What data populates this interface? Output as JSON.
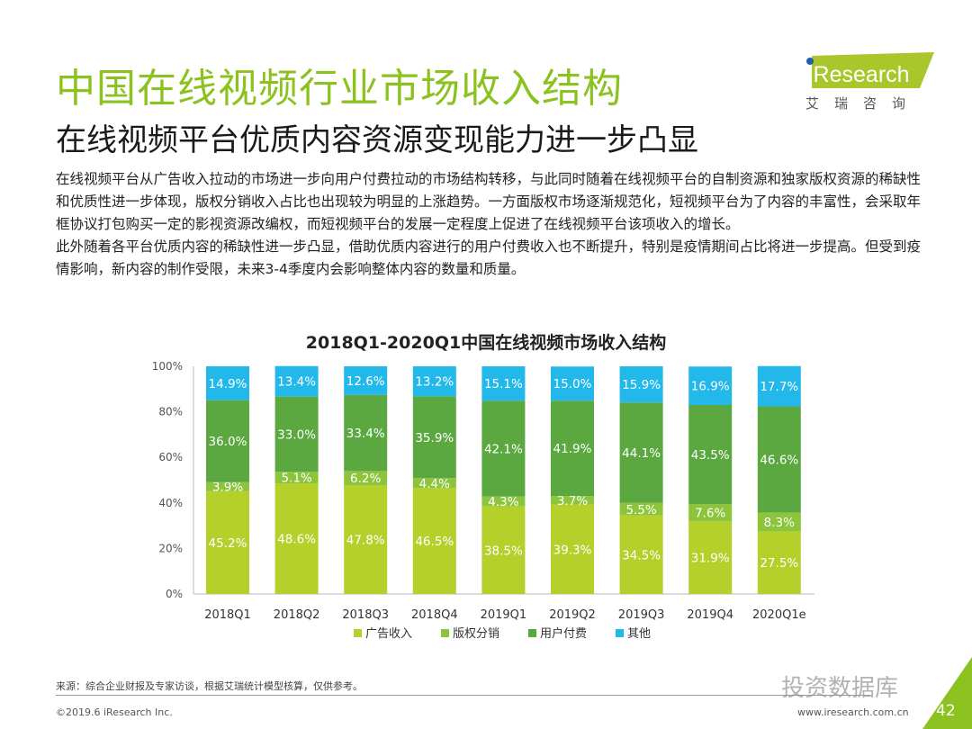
{
  "header": {
    "title": "中国在线视频行业市场收入结构",
    "subtitle": "在线视频平台优质内容资源变现能力进一步凸显",
    "logo_text": "iResearch",
    "logo_cn": "艾瑞咨询"
  },
  "body": {
    "paragraphs": [
      "在线视频平台从广告收入拉动的市场进一步向用户付费拉动的市场结构转移，与此同时随着在线视频平台的自制资源和独家版权资源的稀缺性和优质性进一步体现，版权分销收入占比也出现较为明显的上涨趋势。一方面版权市场逐渐规范化，短视频平台为了内容的丰富性，会采取年框协议打包购买一定的影视资源改编权，而短视频平台的发展一定程度上促进了在线视频平台该项收入的增长。",
      "此外随着各平台优质内容的稀缺性进一步凸显，借助优质内容进行的用户付费收入也不断提升，特别是疫情期间占比将进一步提高。但受到疫情影响，新内容的制作受限，未来3-4季度内会影响整体内容的数量和质量。"
    ]
  },
  "chart_data": {
    "type": "bar",
    "stacked": true,
    "title": "2018Q1-2020Q1中国在线视频市场收入结构",
    "categories": [
      "2018Q1",
      "2018Q2",
      "2018Q3",
      "2018Q4",
      "2019Q1",
      "2019Q2",
      "2019Q3",
      "2019Q4",
      "2020Q1e"
    ],
    "series": [
      {
        "name": "广告收入",
        "color": "#b5cf2b",
        "values": [
          45.2,
          48.6,
          47.8,
          46.5,
          38.5,
          39.3,
          34.5,
          31.9,
          27.5
        ]
      },
      {
        "name": "版权分销",
        "color": "#8cc43c",
        "values": [
          3.9,
          5.1,
          6.2,
          4.4,
          4.3,
          3.7,
          5.5,
          7.6,
          8.3
        ]
      },
      {
        "name": "用户付费",
        "color": "#5aa83f",
        "values": [
          36.0,
          33.0,
          33.4,
          35.9,
          42.1,
          41.9,
          44.1,
          43.5,
          46.6
        ]
      },
      {
        "name": "其他",
        "color": "#22b8ea",
        "values": [
          14.9,
          13.4,
          12.6,
          13.2,
          15.1,
          15.0,
          15.9,
          16.9,
          17.7
        ]
      }
    ],
    "yticks": [
      "0%",
      "20%",
      "40%",
      "60%",
      "80%",
      "100%"
    ],
    "ylim": [
      0,
      100
    ],
    "legend": "bottom",
    "grid": false
  },
  "footer": {
    "source": "来源：综合企业财报及专家访谈，根据艾瑞统计模型核算，仅供参考。",
    "copyright": "©2019.6 iResearch Inc.",
    "url": "www.iresearch.com.cn",
    "page": "42",
    "watermark": "投资数据库"
  }
}
